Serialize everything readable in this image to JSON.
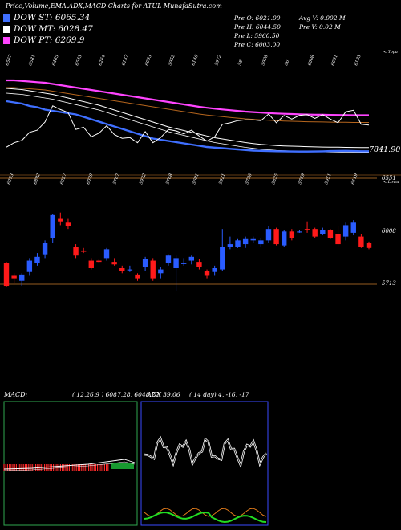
{
  "header": {
    "title": "Price,Volume,EMA,ADX,MACD Charts for ATUL MunafaSutra.com",
    "legend": [
      {
        "label": "DOW ST: 6065.34",
        "color": "#3f6fff"
      },
      {
        "label": "DOW MT: 6028.47",
        "color": "#ffffff"
      },
      {
        "label": "DOW PT: 6269.9",
        "color": "#ff44ff"
      }
    ],
    "stats_col1": [
      "Pre O: 6021.00",
      "Pre H: 6044.50",
      "Pre L: 5960.50",
      "Pre C: 6003.00"
    ],
    "stats_col2": [
      "Avg V: 0.002 M",
      "Pre V: 0.02 M"
    ]
  },
  "price_panel": {
    "corner_label": "< Topa",
    "last_value_label": "7841.90",
    "top_tick_labels": [
      "6567",
      "6581",
      "6465",
      "6543",
      "6264",
      "6137",
      "6093",
      "5952",
      "6146",
      "5972",
      "58",
      "5928",
      "66",
      "6008",
      "6091",
      "6133"
    ]
  },
  "candle_panel": {
    "corner_label": "< Lowa",
    "top_tick_labels": [
      "6293",
      "6892",
      "6227",
      "6029",
      "5767",
      "5922",
      "5768",
      "5691",
      "5921",
      "5736",
      "5835",
      "5769",
      "5951",
      "6119"
    ],
    "level_labels": [
      "6551",
      "6008",
      "5713"
    ]
  },
  "macd_panel": {
    "label": "MACD:",
    "values_text": "( 12,26,9 ) 6087.28, 6048.22, 39.06"
  },
  "adx_panel": {
    "label": "ADX",
    "values_text": "( 14 day) 4, -16, -17"
  },
  "colors": {
    "candle_up": "#2a5cff",
    "candle_down": "#ff1a1a",
    "ema_short": "#3f6fff",
    "ema_mid": "#ffffff",
    "ema_long": "#ff44ff",
    "ema_brown": "#b5651d",
    "level_line": "#c97b2a",
    "macd_bg_border": "#2fa84f",
    "adx_border": "#3a4aff"
  },
  "chart_data": {
    "type": "candlestick",
    "title": "Price,Volume,EMA,ADX,MACD Charts for ATUL",
    "ylim": [
      5650,
      6650
    ],
    "levels": [
      6551,
      6008,
      5713
    ],
    "candles": [
      {
        "o": 5880,
        "h": 5890,
        "l": 5690,
        "c": 5700
      },
      {
        "o": 5780,
        "h": 5800,
        "l": 5720,
        "c": 5760
      },
      {
        "o": 5740,
        "h": 5800,
        "l": 5700,
        "c": 5790
      },
      {
        "o": 5810,
        "h": 5920,
        "l": 5780,
        "c": 5900
      },
      {
        "o": 5880,
        "h": 5960,
        "l": 5860,
        "c": 5930
      },
      {
        "o": 5950,
        "h": 6060,
        "l": 5920,
        "c": 6040
      },
      {
        "o": 6080,
        "h": 6270,
        "l": 6040,
        "c": 6260
      },
      {
        "o": 6230,
        "h": 6280,
        "l": 6180,
        "c": 6210
      },
      {
        "o": 6200,
        "h": 6230,
        "l": 6150,
        "c": 6170
      },
      {
        "o": 6010,
        "h": 6030,
        "l": 5920,
        "c": 5940
      },
      {
        "o": 5980,
        "h": 6000,
        "l": 5960,
        "c": 5970
      },
      {
        "o": 5900,
        "h": 5920,
        "l": 5830,
        "c": 5840
      },
      {
        "o": 5900,
        "h": 5910,
        "l": 5880,
        "c": 5890
      },
      {
        "o": 5920,
        "h": 6000,
        "l": 5900,
        "c": 5990
      },
      {
        "o": 5890,
        "h": 5920,
        "l": 5860,
        "c": 5870
      },
      {
        "o": 5840,
        "h": 5860,
        "l": 5800,
        "c": 5820
      },
      {
        "o": 5830,
        "h": 5860,
        "l": 5810,
        "c": 5830
      },
      {
        "o": 5790,
        "h": 5800,
        "l": 5740,
        "c": 5760
      },
      {
        "o": 5850,
        "h": 5930,
        "l": 5820,
        "c": 5910
      },
      {
        "o": 5900,
        "h": 5920,
        "l": 5740,
        "c": 5760
      },
      {
        "o": 5800,
        "h": 5850,
        "l": 5760,
        "c": 5830
      },
      {
        "o": 5880,
        "h": 5950,
        "l": 5860,
        "c": 5940
      },
      {
        "o": 5840,
        "h": 5940,
        "l": 5660,
        "c": 5920
      },
      {
        "o": 5880,
        "h": 5920,
        "l": 5860,
        "c": 5880
      },
      {
        "o": 5900,
        "h": 5940,
        "l": 5870,
        "c": 5930
      },
      {
        "o": 5890,
        "h": 5910,
        "l": 5830,
        "c": 5850
      },
      {
        "o": 5820,
        "h": 5830,
        "l": 5760,
        "c": 5780
      },
      {
        "o": 5810,
        "h": 5860,
        "l": 5780,
        "c": 5840
      },
      {
        "o": 5830,
        "h": 6150,
        "l": 5820,
        "c": 6010
      },
      {
        "o": 6010,
        "h": 6090,
        "l": 5990,
        "c": 6030
      },
      {
        "o": 6010,
        "h": 6070,
        "l": 6000,
        "c": 6060
      },
      {
        "o": 6030,
        "h": 6090,
        "l": 6000,
        "c": 6070
      },
      {
        "o": 6060,
        "h": 6090,
        "l": 6040,
        "c": 6070
      },
      {
        "o": 6030,
        "h": 6080,
        "l": 6010,
        "c": 6060
      },
      {
        "o": 6060,
        "h": 6170,
        "l": 6040,
        "c": 6150
      },
      {
        "o": 6150,
        "h": 6160,
        "l": 6020,
        "c": 6030
      },
      {
        "o": 6020,
        "h": 6140,
        "l": 6010,
        "c": 6130
      },
      {
        "o": 6130,
        "h": 6150,
        "l": 6060,
        "c": 6080
      },
      {
        "o": 6130,
        "h": 6140,
        "l": 6120,
        "c": 6130
      },
      {
        "o": 6150,
        "h": 6210,
        "l": 6120,
        "c": 6140
      },
      {
        "o": 6150,
        "h": 6160,
        "l": 6080,
        "c": 6090
      },
      {
        "o": 6110,
        "h": 6160,
        "l": 6100,
        "c": 6140
      },
      {
        "o": 6140,
        "h": 6150,
        "l": 6070,
        "c": 6080
      },
      {
        "o": 6110,
        "h": 6170,
        "l": 6010,
        "c": 6030
      },
      {
        "o": 6090,
        "h": 6200,
        "l": 6060,
        "c": 6180
      },
      {
        "o": 6120,
        "h": 6220,
        "l": 6100,
        "c": 6200
      },
      {
        "o": 6090,
        "h": 6110,
        "l": 6000,
        "c": 6010
      },
      {
        "o": 6040,
        "h": 6050,
        "l": 5990,
        "c": 6000
      }
    ],
    "ema_short": [
      6480,
      6470,
      6460,
      6440,
      6430,
      6410,
      6400,
      6390,
      6380,
      6370,
      6350,
      6330,
      6310,
      6290,
      6270,
      6250,
      6230,
      6210,
      6190,
      6170,
      6160,
      6150,
      6140,
      6130,
      6120,
      6110,
      6100,
      6095,
      6090,
      6085,
      6080,
      6075,
      6070,
      6068,
      6066,
      6065,
      6064,
      6063,
      6062,
      6062,
      6063,
      6064,
      6066,
      6067,
      6068,
      6066,
      6065,
      6065
    ],
    "ema_mid": [
      6520,
      6515,
      6510,
      6500,
      6490,
      6480,
      6470,
      6455,
      6440,
      6425,
      6410,
      6395,
      6380,
      6360,
      6340,
      6320,
      6300,
      6280,
      6260,
      6240,
      6220,
      6200,
      6185,
      6170,
      6155,
      6140,
      6125,
      6110,
      6100,
      6090,
      6080,
      6070,
      6062,
      6055,
      6050,
      6045,
      6042,
      6040,
      6038,
      6036,
      6034,
      6033,
      6032,
      6031,
      6030,
      6029,
      6028,
      6028
    ],
    "ema_long": [
      6560,
      6560,
      6555,
      6550,
      6545,
      6540,
      6530,
      6520,
      6510,
      6500,
      6490,
      6480,
      6470,
      6460,
      6450,
      6440,
      6430,
      6420,
      6410,
      6400,
      6390,
      6380,
      6370,
      6360,
      6350,
      6340,
      6332,
      6325,
      6318,
      6312,
      6306,
      6300,
      6296,
      6292,
      6288,
      6285,
      6282,
      6280,
      6278,
      6276,
      6275,
      6274,
      6273,
      6272,
      6271,
      6270,
      6270,
      6270
    ],
    "macd": {
      "fast": 12,
      "slow": 26,
      "signal": 9,
      "values": [
        6087.28,
        6048.22,
        39.06
      ]
    },
    "adx": {
      "period": 14,
      "values": [
        4,
        -16,
        -17
      ]
    }
  }
}
